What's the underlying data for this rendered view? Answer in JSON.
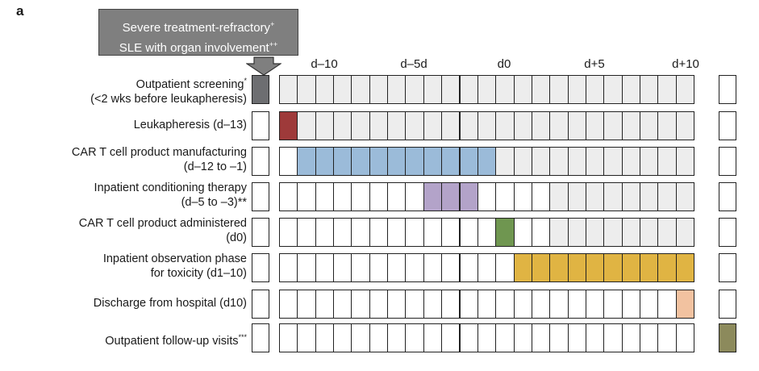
{
  "panel_label": "a",
  "callout": {
    "line1": "Severe treatment-refractory",
    "line1_sup": "+",
    "line2": "SLE with organ involvement",
    "line2_sup": "++"
  },
  "day_labels": [
    "d–10",
    "d–5d",
    "d0",
    "d+5",
    "d+10"
  ],
  "colors": {
    "screening": "#6d6e71",
    "leukapheresis": "#9e3a3a",
    "manufacturing": "#9bbbd9",
    "conditioning": "#b3a3c9",
    "administered": "#6f9650",
    "observation": "#e0b443",
    "discharge": "#f2c2a0",
    "followup": "#8c8a5c",
    "grey": "#ededed",
    "white": "#ffffff"
  },
  "rows": [
    {
      "name": "screening",
      "line1": "Outpatient screening",
      "line1_sup": "*",
      "line2": "(<2 wks before leukapheresis)",
      "screen_box": true,
      "follow_box": false,
      "grey_from": 0,
      "color_from": -1,
      "color_to": -1
    },
    {
      "name": "leukapheresis",
      "line1": "Leukapheresis (d–13)",
      "line1_sup": "",
      "line2": "",
      "screen_box": false,
      "follow_box": false,
      "grey_from": 1,
      "color_from": 0,
      "color_to": 0
    },
    {
      "name": "manufacturing",
      "line1": "CAR T cell product manufacturing",
      "line1_sup": "",
      "line2": "(d–12 to –1)",
      "screen_box": false,
      "follow_box": false,
      "grey_from": 12,
      "color_from": 1,
      "color_to": 11
    },
    {
      "name": "conditioning",
      "line1": "Inpatient conditioning therapy",
      "line1_sup": "",
      "line2": "(d–5 to –3)**",
      "screen_box": false,
      "follow_box": false,
      "grey_from": 15,
      "color_from": 8,
      "color_to": 10
    },
    {
      "name": "administered",
      "line1": "CAR T cell product administered",
      "line1_sup": "",
      "line2": "(d0)",
      "screen_box": false,
      "follow_box": false,
      "grey_from": 15,
      "color_from": 12,
      "color_to": 12
    },
    {
      "name": "observation",
      "line1": "Inpatient observation phase",
      "line1_sup": "",
      "line2": "for toxicity (d1–10)",
      "screen_box": false,
      "follow_box": false,
      "grey_from": 99,
      "color_from": 13,
      "color_to": 22
    },
    {
      "name": "discharge",
      "line1": "Discharge from hospital (d10)",
      "line1_sup": "",
      "line2": "",
      "screen_box": false,
      "follow_box": false,
      "grey_from": 99,
      "color_from": 22,
      "color_to": 22
    },
    {
      "name": "followup",
      "line1": "Outpatient follow-up visits",
      "line1_sup": "***",
      "line2": "",
      "screen_box": false,
      "follow_box": true,
      "grey_from": 99,
      "color_from": -1,
      "color_to": -1
    }
  ]
}
